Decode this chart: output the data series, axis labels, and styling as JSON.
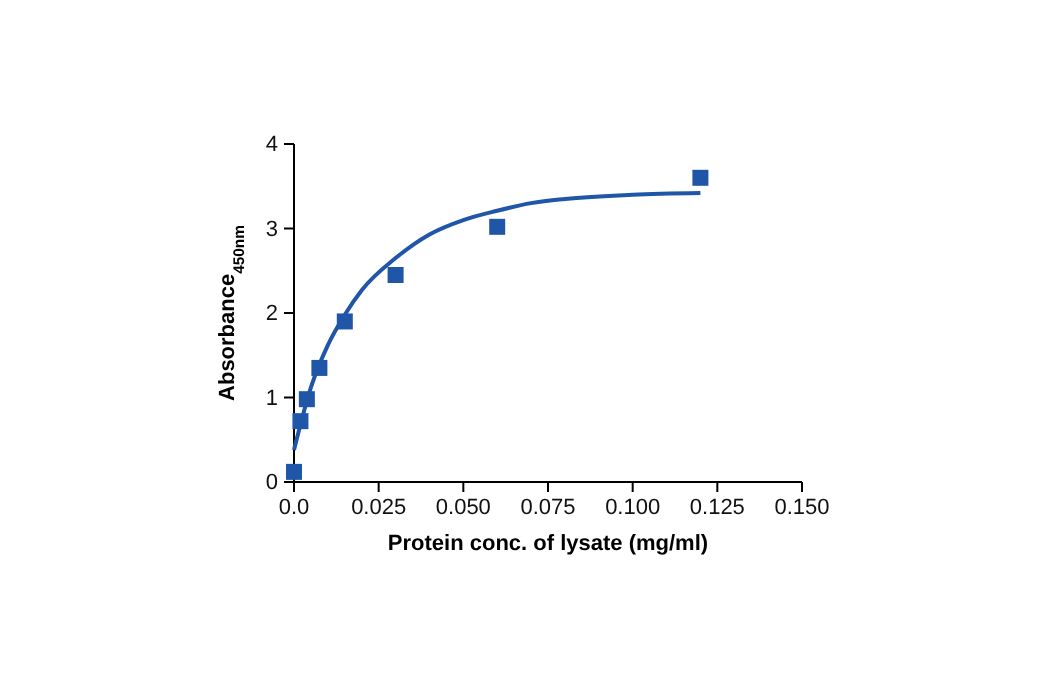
{
  "chart_data": {
    "type": "scatter",
    "xlabel": "Protein conc. of lysate (mg/ml)",
    "ylabel": "Absorbance$_{450nm}$",
    "xlim": [
      0,
      0.15
    ],
    "xticks": [
      {
        "value": 0,
        "label": "0.0"
      },
      {
        "value": 0.025,
        "label": "0.025"
      },
      {
        "value": 0.05,
        "label": "0.050"
      },
      {
        "value": 0.075,
        "label": "0.075"
      },
      {
        "value": 0.1,
        "label": "0.100"
      },
      {
        "value": 0.125,
        "label": "0.125"
      },
      {
        "value": 0.15,
        "label": "0.150"
      }
    ],
    "ylim": [
      0,
      4
    ],
    "yticks": [
      0,
      1,
      2,
      3,
      4
    ],
    "grid": false,
    "series": [
      {
        "marker": "square",
        "color": "#1f56a8",
        "x": [
          0,
          0.0019,
          0.0038,
          0.0075,
          0.015,
          0.03,
          0.06,
          0.12
        ],
        "values": [
          0.12,
          0.72,
          0.98,
          1.35,
          1.9,
          2.45,
          3.02,
          3.6
        ]
      },
      {
        "type": "line",
        "marker": "none",
        "line_style": "solid",
        "color": "#1f56a8",
        "x": [
          0,
          0.005,
          0.01,
          0.015,
          0.02,
          0.03,
          0.04,
          0.05,
          0.06,
          0.07,
          0.08,
          0.1,
          0.12
        ],
        "values": [
          0.38,
          1.12,
          1.62,
          1.98,
          2.27,
          2.65,
          2.93,
          3.1,
          3.21,
          3.3,
          3.35,
          3.4,
          3.42
        ]
      }
    ]
  }
}
